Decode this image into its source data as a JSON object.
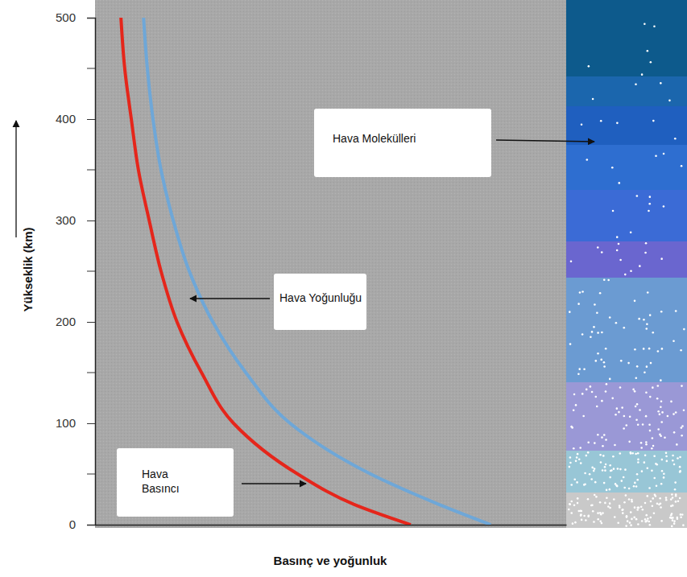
{
  "chart_data": {
    "type": "line",
    "x_label": "Basınç ve yoğunluk",
    "y_label": "Yükseklik (km)",
    "series": [
      {
        "name": "Hava Basıncı",
        "color": "#e5261b",
        "x": [
          67,
          55,
          43,
          29.4,
          22.6,
          17.4,
          14,
          11.5,
          9.2,
          7.7,
          6.3,
          5.5
        ],
        "values": [
          0,
          20,
          50,
          100,
          150,
          200,
          250,
          300,
          350,
          400,
          450,
          500
        ]
      },
      {
        "name": "Hava Yoğunluğu",
        "color": "#6ea7d8",
        "x": [
          84,
          73,
          58.5,
          41.4,
          32,
          25,
          20,
          16.6,
          14,
          12.3,
          11.1,
          10.3
        ],
        "values": [
          0,
          20,
          50,
          100,
          150,
          200,
          250,
          300,
          350,
          400,
          450,
          500
        ]
      }
    ],
    "xlim": [
      0,
      100
    ],
    "ylim": [
      0,
      500
    ],
    "yticks": [
      0,
      100,
      200,
      300,
      400,
      500
    ],
    "y_minor_ticks": [
      50,
      150,
      250,
      350,
      450
    ],
    "tick_labels": "y",
    "annotations": [
      "Hava Molekülleri"
    ]
  }
}
